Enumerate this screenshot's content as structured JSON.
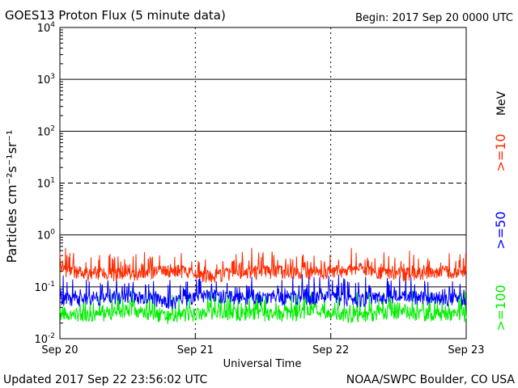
{
  "chart_data": {
    "type": "line",
    "title": "GOES13 Proton Flux (5 minute data)",
    "begin_label": "Begin: 2017 Sep 20 0000 UTC",
    "xlabel": "Universal Time",
    "ylabel": "Particles cm⁻²s⁻¹sr⁻¹",
    "y_scale": "log",
    "ylim": [
      0.01,
      10000
    ],
    "y_ticks": [
      {
        "base": "10",
        "exp": "-2",
        "value": 0.01
      },
      {
        "base": "10",
        "exp": "-1",
        "value": 0.1
      },
      {
        "base": "10",
        "exp": "0",
        "value": 1
      },
      {
        "base": "10",
        "exp": "1",
        "value": 10
      },
      {
        "base": "10",
        "exp": "2",
        "value": 100
      },
      {
        "base": "10",
        "exp": "3",
        "value": 1000
      },
      {
        "base": "10",
        "exp": "4",
        "value": 10000
      }
    ],
    "x_ticks": [
      "Sep 20",
      "Sep 21",
      "Sep 22",
      "Sep 23"
    ],
    "xlim_days": [
      0,
      3
    ],
    "grid": "horizontal lines at each decade (dashed at 10), dashed verticals at day boundaries",
    "series": [
      {
        "name": ">=10",
        "color": "#ff2a00",
        "values": [
          0.2,
          0.18,
          0.17,
          0.21,
          0.16,
          0.19,
          0.2,
          0.18,
          0.22,
          0.17,
          0.19,
          0.2
        ]
      },
      {
        "name": ">=50",
        "color": "#0000ff",
        "values": [
          0.06,
          0.055,
          0.065,
          0.05,
          0.07,
          0.06,
          0.058,
          0.062,
          0.055,
          0.066,
          0.06,
          0.057
        ]
      },
      {
        "name": ">=100",
        "color": "#00ee00",
        "values": [
          0.03,
          0.028,
          0.035,
          0.026,
          0.032,
          0.03,
          0.029,
          0.033,
          0.027,
          0.031,
          0.03,
          0.028
        ]
      }
    ],
    "legend_unit": "MeV",
    "legend_placement": "right, rotated"
  },
  "footer": {
    "updated": "Updated 2017 Sep 22 23:56:02 UTC",
    "source": "NOAA/SWPC Boulder, CO USA"
  }
}
